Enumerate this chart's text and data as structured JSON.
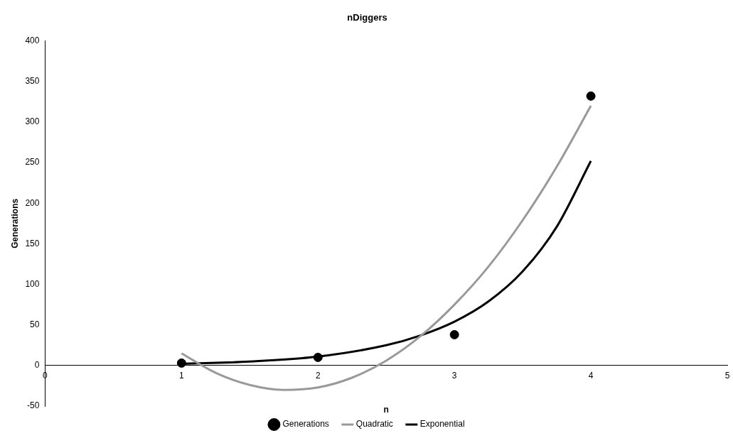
{
  "chart_data": {
    "type": "scatter",
    "title": "nDiggers",
    "xlabel": "n",
    "ylabel": "Generations",
    "xlim": [
      0,
      5
    ],
    "xticks": [
      0,
      1,
      2,
      3,
      4,
      5
    ],
    "ylim": [
      -50,
      400
    ],
    "yticks": [
      -50,
      0,
      50,
      100,
      150,
      200,
      250,
      300,
      350,
      400
    ],
    "grid": false,
    "legend": "bottom",
    "series": [
      {
        "name": "Generations",
        "type": "scatter",
        "marker": "circle",
        "color": "#000000",
        "x": [
          1,
          2,
          3,
          4
        ],
        "values": [
          3,
          10,
          38,
          332
        ]
      },
      {
        "name": "Quadratic",
        "type": "line",
        "marker": "none",
        "color": "#999999",
        "x": [
          1,
          1.25,
          1.5,
          1.75,
          2,
          2.25,
          2.5,
          2.75,
          3,
          3.25,
          3.5,
          3.75,
          4
        ],
        "values": [
          15,
          -9,
          -24,
          -30,
          -27,
          -15,
          6,
          36,
          75,
          122,
          179,
          245,
          320
        ]
      },
      {
        "name": "Exponential",
        "type": "line",
        "marker": "none",
        "color": "#000000",
        "x": [
          1,
          1.5,
          2,
          2.5,
          2.75,
          3,
          3.25,
          3.5,
          3.75,
          4
        ],
        "values": [
          2,
          5,
          11,
          25,
          37,
          54,
          79,
          116,
          171,
          252
        ]
      }
    ]
  }
}
